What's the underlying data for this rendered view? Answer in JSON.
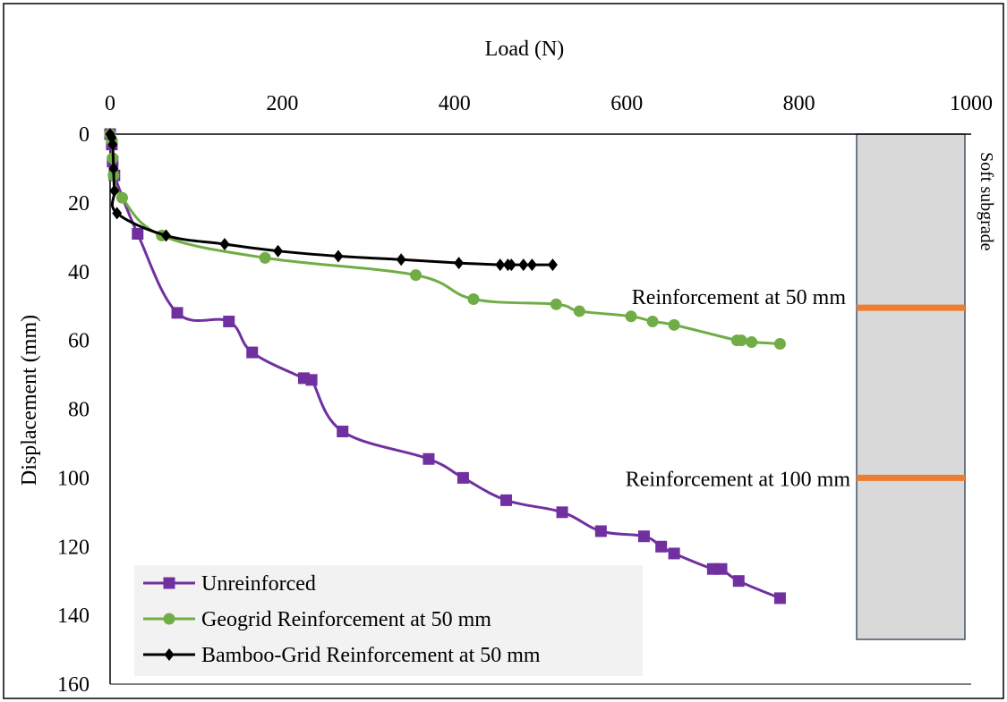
{
  "chart_data": {
    "type": "line",
    "title": "",
    "xlabel": "Load (N)",
    "ylabel": "Displacement (mm)",
    "xlim": [
      0,
      1000
    ],
    "ylim": [
      0,
      160
    ],
    "y_inverted": true,
    "x_axis_position": "top",
    "x_ticks": [
      0,
      200,
      400,
      600,
      800,
      1000
    ],
    "y_ticks": [
      0,
      20,
      40,
      60,
      80,
      100,
      120,
      140,
      160
    ],
    "grid": false,
    "legend_position": "bottom-left",
    "series": [
      {
        "name": "Unreinforced",
        "color": "#7030A0",
        "marker": "square",
        "points": [
          [
            0,
            0
          ],
          [
            2,
            3
          ],
          [
            3,
            8
          ],
          [
            5,
            12
          ],
          [
            32,
            29
          ],
          [
            78,
            52
          ],
          [
            138,
            54.5
          ],
          [
            165,
            63.5
          ],
          [
            225,
            71
          ],
          [
            234,
            71.5
          ],
          [
            270,
            86.5
          ],
          [
            370,
            94.5
          ],
          [
            410,
            100
          ],
          [
            460,
            106.5
          ],
          [
            525,
            110
          ],
          [
            570,
            115.5
          ],
          [
            620,
            117
          ],
          [
            640,
            120
          ],
          [
            655,
            122
          ],
          [
            700,
            126.5
          ],
          [
            710,
            126.5
          ],
          [
            730,
            130
          ],
          [
            778,
            135
          ]
        ]
      },
      {
        "name": "Geogrid Reinforcement at 50 mm",
        "color": "#70AD47",
        "marker": "circle",
        "points": [
          [
            0,
            0
          ],
          [
            2,
            2
          ],
          [
            3,
            7
          ],
          [
            4,
            12
          ],
          [
            14,
            18.5
          ],
          [
            60,
            29.5
          ],
          [
            180,
            36
          ],
          [
            355,
            41
          ],
          [
            422,
            48
          ],
          [
            518,
            49.5
          ],
          [
            545,
            51.5
          ],
          [
            605,
            53
          ],
          [
            630,
            54.5
          ],
          [
            655,
            55.5
          ],
          [
            728,
            60
          ],
          [
            733,
            60
          ],
          [
            745,
            60.5
          ],
          [
            778,
            61
          ]
        ]
      },
      {
        "name": "Bamboo-Grid Reinforcement at 50 mm",
        "color": "#000000",
        "marker": "diamond",
        "points": [
          [
            0,
            0
          ],
          [
            2,
            1
          ],
          [
            3,
            3
          ],
          [
            4,
            10
          ],
          [
            5,
            16.5
          ],
          [
            8,
            23
          ],
          [
            65,
            29.5
          ],
          [
            133,
            32
          ],
          [
            195,
            34
          ],
          [
            265,
            35.5
          ],
          [
            338,
            36.5
          ],
          [
            405,
            37.5
          ],
          [
            453,
            38
          ],
          [
            462,
            38
          ],
          [
            466,
            38
          ],
          [
            480,
            38
          ],
          [
            490,
            38
          ],
          [
            514,
            38
          ]
        ]
      }
    ],
    "annotations": {
      "side_label": "Soft subgrade",
      "reinforcement_50": "Reinforcement at 50 mm",
      "reinforcement_100": "Reinforcement at 100 mm"
    },
    "colors": {
      "subgrade_fill": "#D9D9D9",
      "subgrade_border": "#44546A",
      "reinforcement_line": "#ED7D31",
      "legend_bg": "#F2F2F2"
    }
  }
}
